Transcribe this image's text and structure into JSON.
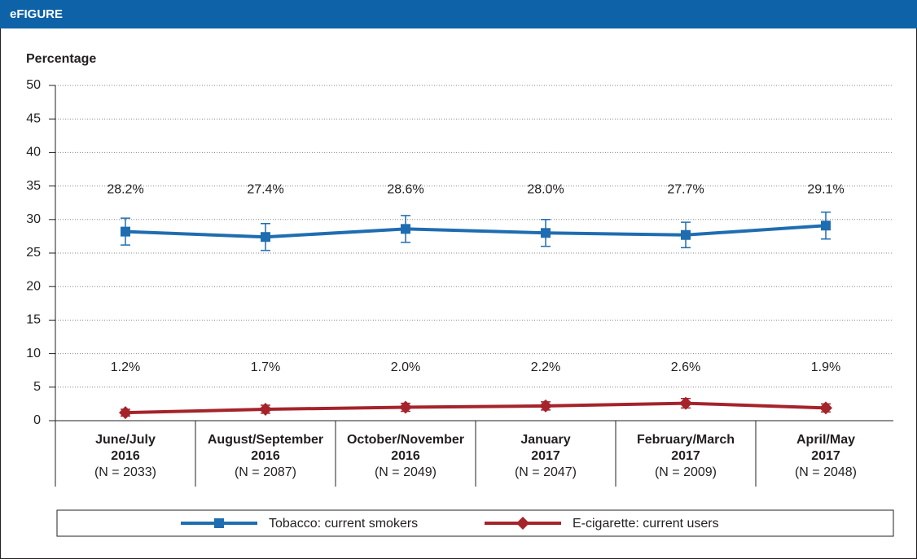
{
  "header": {
    "title": "eFIGURE"
  },
  "chart_data": {
    "type": "line",
    "ylabel": "Percentage",
    "categories": [
      [
        "June/July",
        "2016"
      ],
      [
        "August/September",
        "2016"
      ],
      [
        "October/November",
        "2016"
      ],
      [
        "January",
        "2017"
      ],
      [
        "February/March",
        "2017"
      ],
      [
        "April/May",
        "2017"
      ]
    ],
    "sample_sizes": [
      "(N = 2033)",
      "(N = 2087)",
      "(N = 2049)",
      "(N = 2047)",
      "(N = 2009)",
      "(N = 2048)"
    ],
    "ylim": [
      0,
      50
    ],
    "yticks": [
      0,
      5,
      10,
      15,
      20,
      25,
      30,
      35,
      40,
      45,
      50
    ],
    "grid": true,
    "series": [
      {
        "name": "Tobacco: current smokers",
        "color": "#1f6db1",
        "marker": "square",
        "values": [
          28.2,
          27.4,
          28.6,
          28.0,
          27.7,
          29.1
        ],
        "value_labels": [
          "28.2%",
          "27.4%",
          "28.6%",
          "28.0%",
          "27.7%",
          "29.1%"
        ],
        "errors": [
          2.0,
          2.0,
          2.0,
          2.0,
          1.9,
          2.0
        ]
      },
      {
        "name": "E-cigarette: current users",
        "color": "#a5232b",
        "marker": "diamond",
        "values": [
          1.2,
          1.7,
          2.0,
          2.2,
          2.6,
          1.9
        ],
        "value_labels": [
          "1.2%",
          "1.7%",
          "2.0%",
          "2.2%",
          "2.6%",
          "1.9%"
        ],
        "errors": [
          0.5,
          0.6,
          0.6,
          0.6,
          0.7,
          0.6
        ]
      }
    ]
  }
}
